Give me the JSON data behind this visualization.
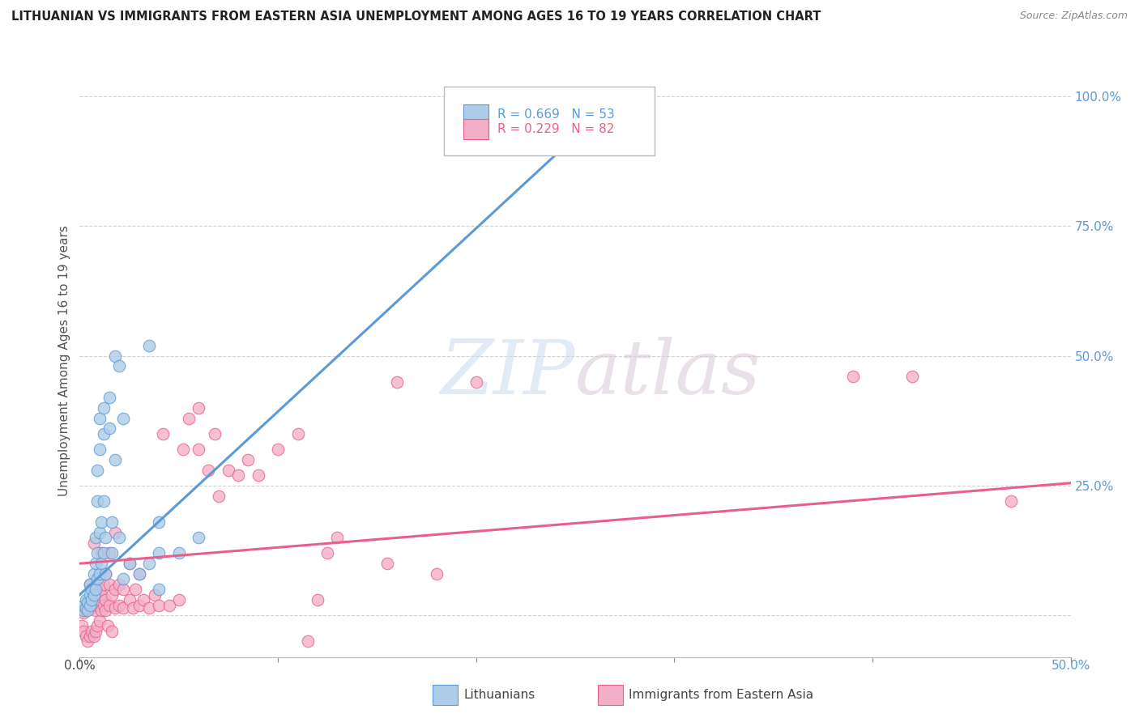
{
  "title": "LITHUANIAN VS IMMIGRANTS FROM EASTERN ASIA UNEMPLOYMENT AMONG AGES 16 TO 19 YEARS CORRELATION CHART",
  "source": "Source: ZipAtlas.com",
  "ylabel": "Unemployment Among Ages 16 to 19 years",
  "ytick_labels": [
    "",
    "25.0%",
    "50.0%",
    "75.0%",
    "100.0%"
  ],
  "ytick_positions": [
    0.0,
    0.25,
    0.5,
    0.75,
    1.0
  ],
  "xmin": 0.0,
  "xmax": 0.5,
  "ymin": -0.08,
  "ymax": 1.06,
  "blue_scatter": [
    [
      0.002,
      0.01
    ],
    [
      0.002,
      0.02
    ],
    [
      0.003,
      0.015
    ],
    [
      0.003,
      0.03
    ],
    [
      0.004,
      0.01
    ],
    [
      0.004,
      0.025
    ],
    [
      0.005,
      0.02
    ],
    [
      0.005,
      0.04
    ],
    [
      0.005,
      0.06
    ],
    [
      0.006,
      0.03
    ],
    [
      0.006,
      0.05
    ],
    [
      0.007,
      0.04
    ],
    [
      0.007,
      0.08
    ],
    [
      0.008,
      0.05
    ],
    [
      0.008,
      0.1
    ],
    [
      0.008,
      0.15
    ],
    [
      0.009,
      0.07
    ],
    [
      0.009,
      0.12
    ],
    [
      0.009,
      0.22
    ],
    [
      0.009,
      0.28
    ],
    [
      0.01,
      0.08
    ],
    [
      0.01,
      0.16
    ],
    [
      0.01,
      0.32
    ],
    [
      0.01,
      0.38
    ],
    [
      0.011,
      0.1
    ],
    [
      0.011,
      0.18
    ],
    [
      0.012,
      0.12
    ],
    [
      0.012,
      0.22
    ],
    [
      0.012,
      0.35
    ],
    [
      0.012,
      0.4
    ],
    [
      0.013,
      0.08
    ],
    [
      0.013,
      0.15
    ],
    [
      0.015,
      0.36
    ],
    [
      0.015,
      0.42
    ],
    [
      0.016,
      0.12
    ],
    [
      0.016,
      0.18
    ],
    [
      0.018,
      0.3
    ],
    [
      0.018,
      0.5
    ],
    [
      0.02,
      0.15
    ],
    [
      0.02,
      0.48
    ],
    [
      0.022,
      0.07
    ],
    [
      0.022,
      0.38
    ],
    [
      0.025,
      0.1
    ],
    [
      0.03,
      0.08
    ],
    [
      0.035,
      0.1
    ],
    [
      0.035,
      0.52
    ],
    [
      0.04,
      0.05
    ],
    [
      0.04,
      0.12
    ],
    [
      0.04,
      0.18
    ],
    [
      0.05,
      0.12
    ],
    [
      0.06,
      0.15
    ],
    [
      0.26,
      1.0
    ],
    [
      0.27,
      1.0
    ]
  ],
  "pink_scatter": [
    [
      0.001,
      -0.02
    ],
    [
      0.001,
      0.01
    ],
    [
      0.002,
      -0.03
    ],
    [
      0.002,
      0.005
    ],
    [
      0.003,
      -0.04
    ],
    [
      0.003,
      0.01
    ],
    [
      0.004,
      -0.05
    ],
    [
      0.004,
      0.015
    ],
    [
      0.005,
      -0.04
    ],
    [
      0.005,
      0.02
    ],
    [
      0.005,
      0.06
    ],
    [
      0.006,
      -0.03
    ],
    [
      0.006,
      0.015
    ],
    [
      0.007,
      -0.04
    ],
    [
      0.007,
      0.02
    ],
    [
      0.007,
      0.14
    ],
    [
      0.008,
      -0.03
    ],
    [
      0.008,
      0.01
    ],
    [
      0.008,
      0.04
    ],
    [
      0.009,
      -0.02
    ],
    [
      0.009,
      0.02
    ],
    [
      0.009,
      0.07
    ],
    [
      0.01,
      -0.01
    ],
    [
      0.01,
      0.03
    ],
    [
      0.01,
      0.05
    ],
    [
      0.011,
      0.01
    ],
    [
      0.011,
      0.04
    ],
    [
      0.011,
      0.12
    ],
    [
      0.012,
      0.02
    ],
    [
      0.012,
      0.06
    ],
    [
      0.013,
      0.01
    ],
    [
      0.013,
      0.03
    ],
    [
      0.013,
      0.08
    ],
    [
      0.014,
      -0.02
    ],
    [
      0.015,
      0.02
    ],
    [
      0.015,
      0.06
    ],
    [
      0.015,
      0.12
    ],
    [
      0.016,
      -0.03
    ],
    [
      0.016,
      0.04
    ],
    [
      0.018,
      0.015
    ],
    [
      0.018,
      0.05
    ],
    [
      0.018,
      0.16
    ],
    [
      0.02,
      0.02
    ],
    [
      0.02,
      0.06
    ],
    [
      0.022,
      0.015
    ],
    [
      0.022,
      0.05
    ],
    [
      0.025,
      0.03
    ],
    [
      0.025,
      0.1
    ],
    [
      0.027,
      0.015
    ],
    [
      0.028,
      0.05
    ],
    [
      0.03,
      0.02
    ],
    [
      0.03,
      0.08
    ],
    [
      0.032,
      0.03
    ],
    [
      0.035,
      0.015
    ],
    [
      0.038,
      0.04
    ],
    [
      0.04,
      0.02
    ],
    [
      0.042,
      0.35
    ],
    [
      0.045,
      0.02
    ],
    [
      0.05,
      0.03
    ],
    [
      0.052,
      0.32
    ],
    [
      0.055,
      0.38
    ],
    [
      0.06,
      0.32
    ],
    [
      0.06,
      0.4
    ],
    [
      0.065,
      0.28
    ],
    [
      0.068,
      0.35
    ],
    [
      0.07,
      0.23
    ],
    [
      0.075,
      0.28
    ],
    [
      0.08,
      0.27
    ],
    [
      0.085,
      0.3
    ],
    [
      0.09,
      0.27
    ],
    [
      0.1,
      0.32
    ],
    [
      0.11,
      0.35
    ],
    [
      0.115,
      -0.05
    ],
    [
      0.12,
      0.03
    ],
    [
      0.125,
      0.12
    ],
    [
      0.13,
      0.15
    ],
    [
      0.155,
      0.1
    ],
    [
      0.16,
      0.45
    ],
    [
      0.18,
      0.08
    ],
    [
      0.2,
      0.45
    ],
    [
      0.39,
      0.46
    ],
    [
      0.42,
      0.46
    ],
    [
      0.47,
      0.22
    ]
  ],
  "blue_line_x": [
    0.0,
    0.275
  ],
  "blue_line_y": [
    0.04,
    1.01
  ],
  "pink_line_x": [
    0.0,
    0.5
  ],
  "pink_line_y": [
    0.1,
    0.255
  ],
  "blue_color": "#5b9bd5",
  "pink_color": "#e8608a",
  "blue_scatter_color": "#aecce8",
  "pink_scatter_color": "#f4afc8",
  "watermark_zip": "ZIP",
  "watermark_atlas": "atlas",
  "grid_color": "#d0d0d0"
}
